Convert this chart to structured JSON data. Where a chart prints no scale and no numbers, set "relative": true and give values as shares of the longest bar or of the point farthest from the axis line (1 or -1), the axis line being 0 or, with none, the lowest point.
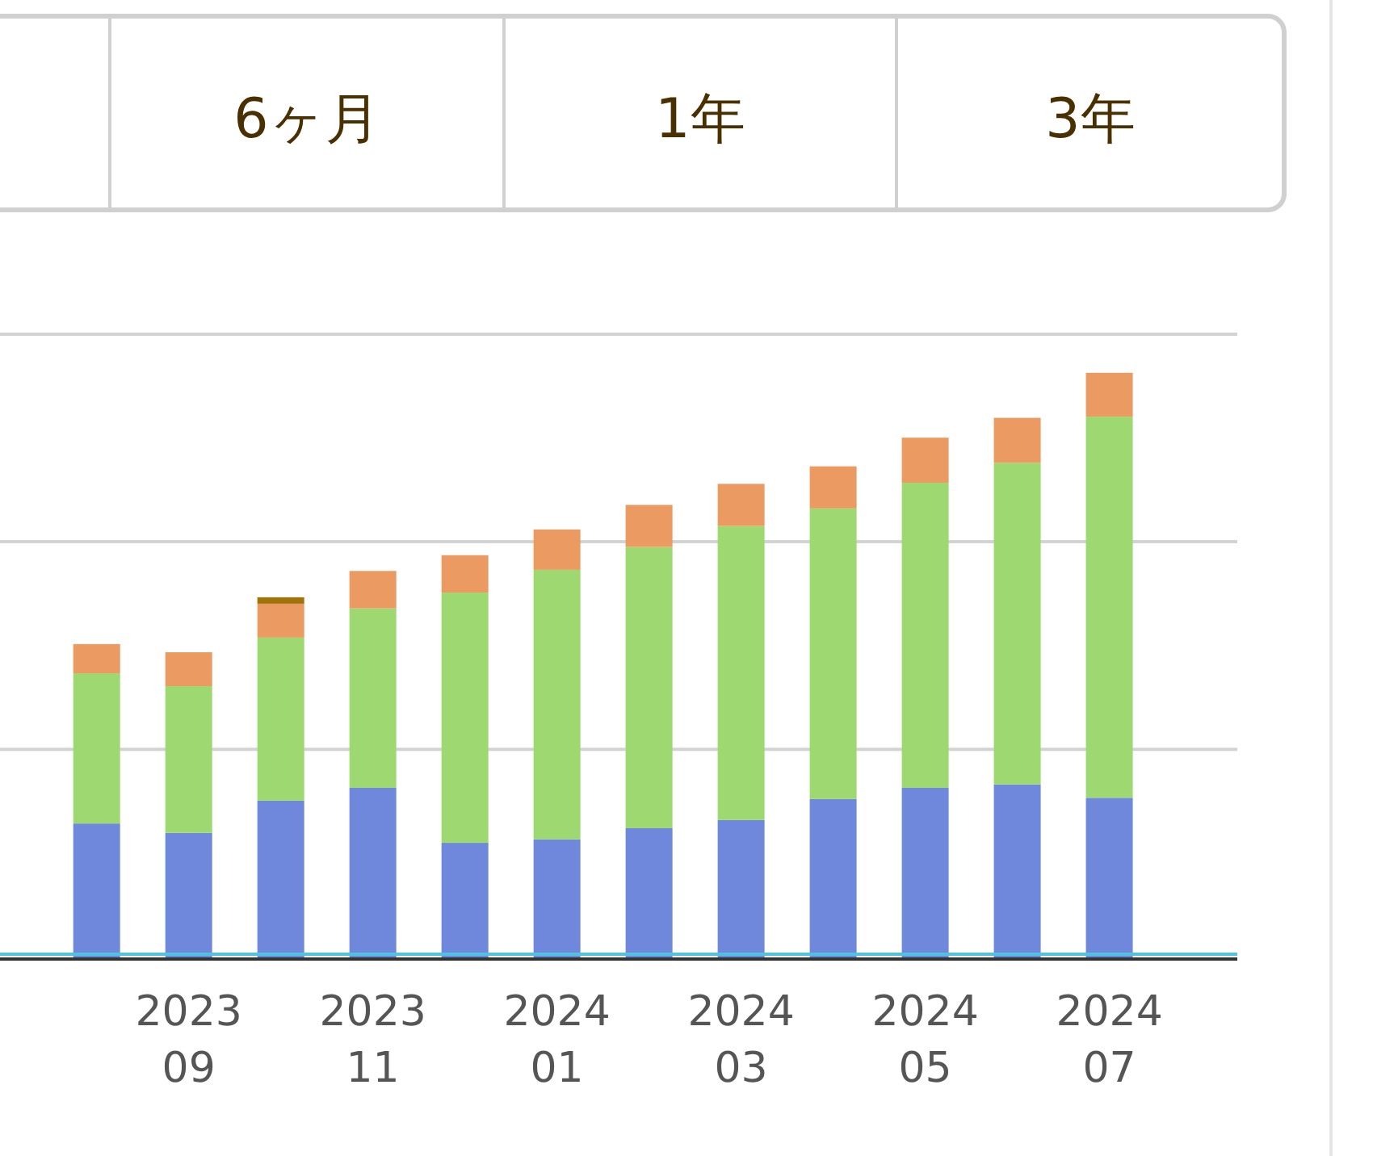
{
  "chart_data": {
    "type": "bar",
    "stacked": true,
    "relative": true,
    "annotations": [
      "6ヶ月",
      "1年",
      "3年"
    ],
    "ref_lines": [
      {
        "axis": "y",
        "value": 0.356,
        "color": "#d3d3d3"
      },
      {
        "axis": "y",
        "value": 0.711,
        "color": "#d3d3d3"
      },
      {
        "axis": "y",
        "value": 1.066,
        "color": "#d3d3d3"
      }
    ],
    "categories": [
      null,
      "2023\n09",
      null,
      "2023\n11",
      null,
      "2024\n01",
      null,
      "2024\n03",
      null,
      "2024\n05",
      null,
      "2024\n07"
    ],
    "series": [
      {
        "color": "#6f88db",
        "values": [
          0.229,
          0.213,
          0.268,
          0.29,
          0.196,
          0.202,
          0.221,
          0.235,
          0.271,
          0.29,
          0.296,
          0.273
        ]
      },
      {
        "color": "#9ed870",
        "values": [
          0.257,
          0.251,
          0.279,
          0.307,
          0.428,
          0.461,
          0.481,
          0.503,
          0.497,
          0.522,
          0.55,
          0.652
        ]
      },
      {
        "color": "#eb9a62",
        "values": [
          0.05,
          0.058,
          0.058,
          0.064,
          0.064,
          0.069,
          0.072,
          0.072,
          0.072,
          0.077,
          0.077,
          0.075
        ]
      },
      {
        "color": "#a0720a",
        "values": [
          null,
          null,
          0.011,
          null,
          null,
          null,
          null,
          null,
          null,
          null,
          null,
          null
        ]
      }
    ]
  }
}
